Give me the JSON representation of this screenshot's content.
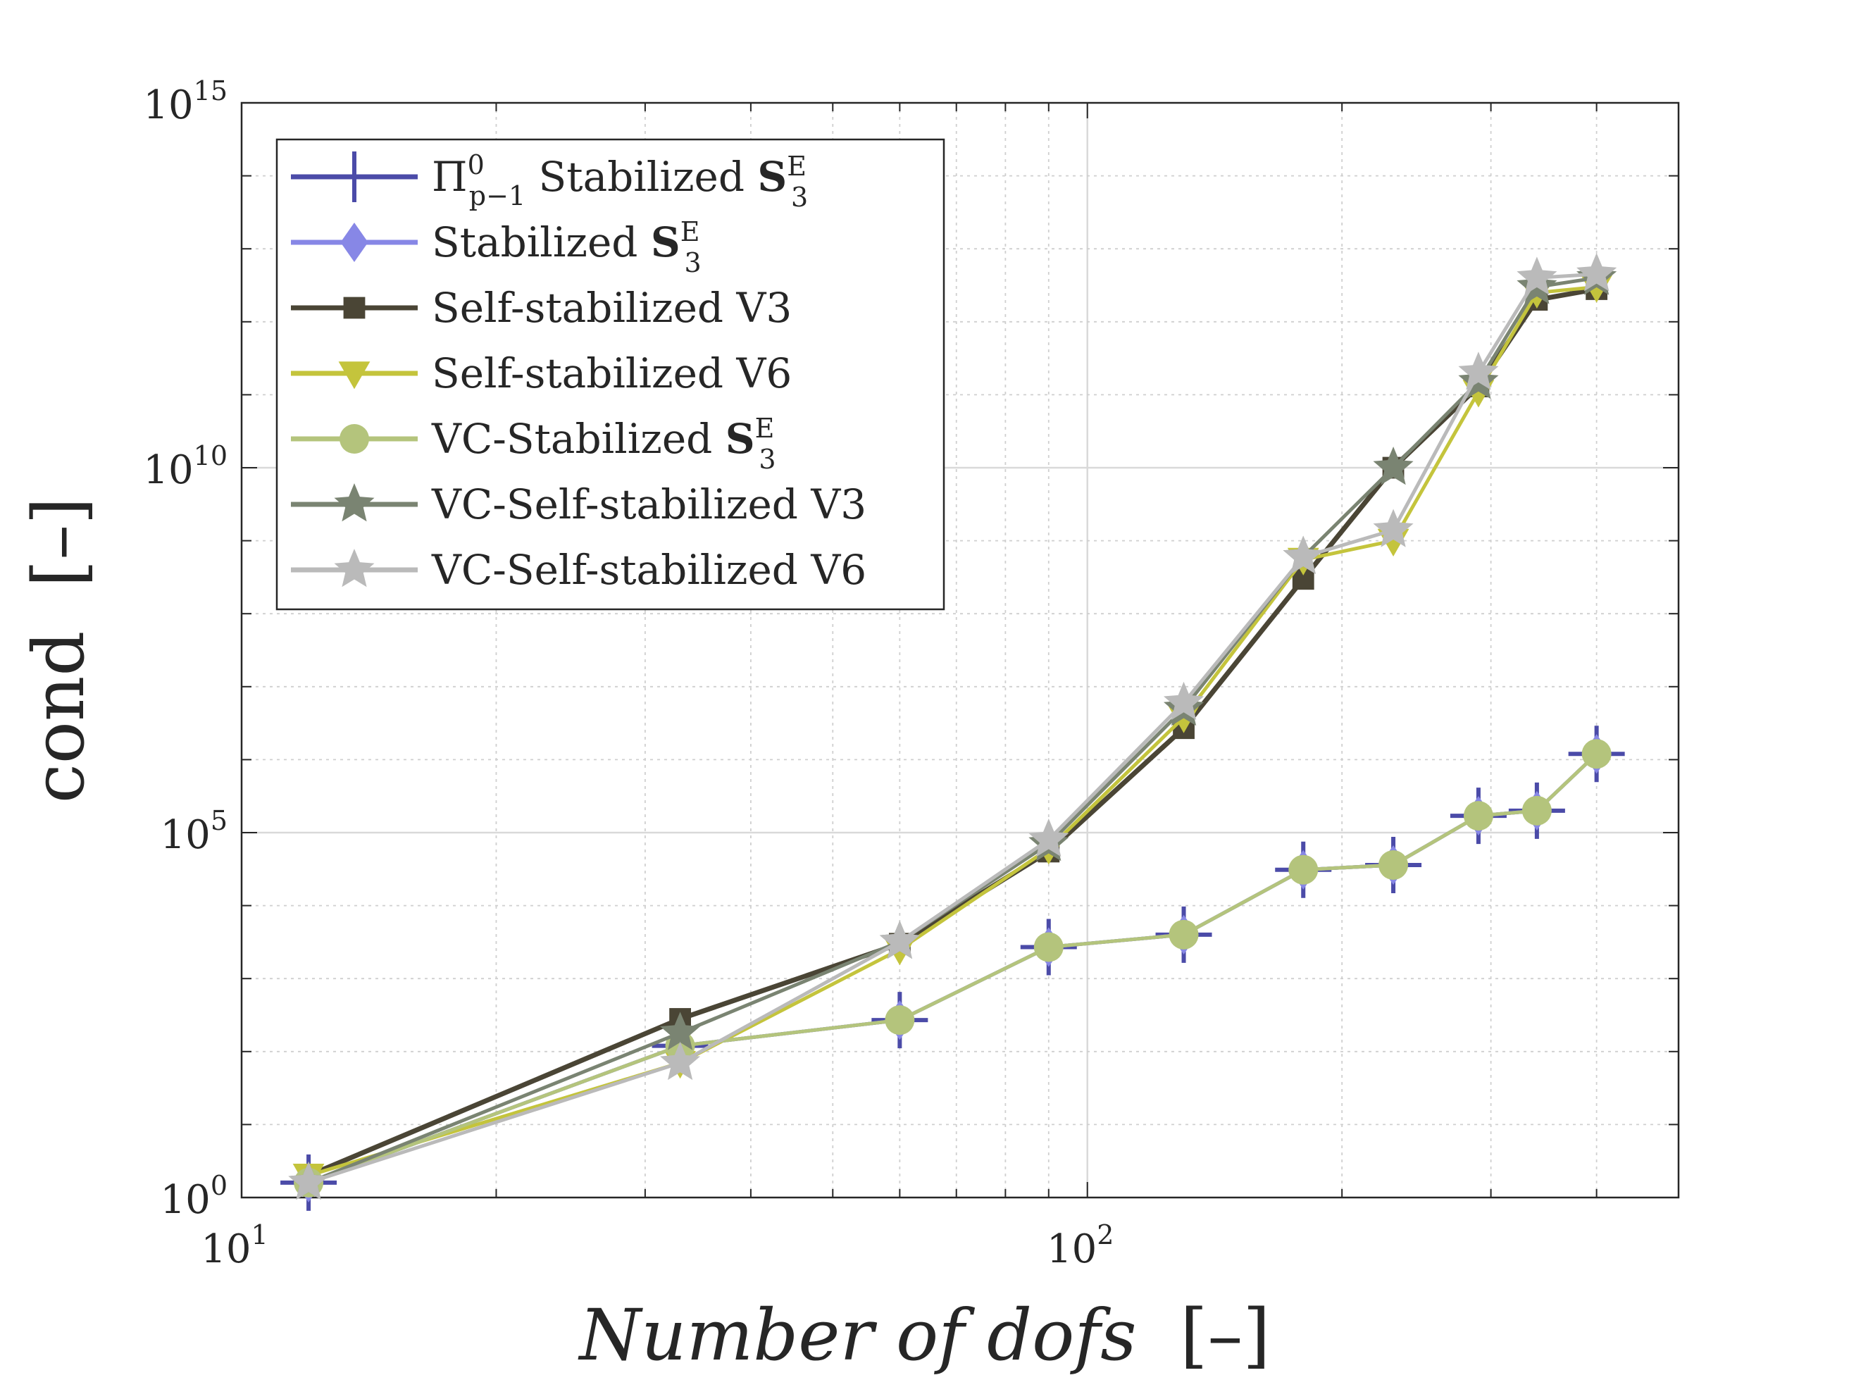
{
  "chart_data": {
    "type": "line",
    "xscale": "log",
    "yscale": "log",
    "xlim": [
      10,
      500
    ],
    "ylim": [
      1,
      1000000000000000.0
    ],
    "xlabel": "Number of dofs",
    "xlabel_unit": "[–]",
    "ylabel": "cond",
    "ylabel_unit": "[–]",
    "grid": true,
    "legend_position": "top-left",
    "x_tick_labels": [
      {
        "value": 10,
        "base": "10",
        "exp": "1"
      },
      {
        "value": 100,
        "base": "10",
        "exp": "2"
      }
    ],
    "y_tick_labels": [
      {
        "value": 1,
        "base": "10",
        "exp": "0"
      },
      {
        "value": 100000,
        "base": "10",
        "exp": "5"
      },
      {
        "value": 10000000000,
        "base": "10",
        "exp": "10"
      },
      {
        "value": 1000000000000000,
        "base": "10",
        "exp": "15"
      }
    ],
    "x": [
      12,
      33,
      60,
      90,
      130,
      180,
      230,
      290,
      340,
      400
    ],
    "series": [
      {
        "name": "Π⁰ₚ₋₁ Stabilized S₃ᴱ",
        "legend": {
          "main": "Π",
          "sup": "0",
          "sub": "p−1",
          "text": " Stabilized ",
          "bold": "S",
          "bsub": "3",
          "bsup": "E"
        },
        "color": "#4b4ba8",
        "marker": "plus",
        "values": [
          1.6,
          120,
          270,
          2700,
          4000,
          31000,
          36000,
          170000,
          200000,
          1200000
        ]
      },
      {
        "name": "Stabilized S₃ᴱ",
        "legend": {
          "main": "",
          "sup": "",
          "sub": "",
          "text": "Stabilized ",
          "bold": "S",
          "bsub": "3",
          "bsup": "E"
        },
        "color": "#8787e6",
        "marker": "diamond",
        "values": [
          1.6,
          120,
          270,
          2700,
          4000,
          31000,
          36000,
          170000,
          200000,
          1200000
        ]
      },
      {
        "name": "Self-stabilized V3",
        "legend": {
          "text": "Self-stabilized V3"
        },
        "color": "#4a4535",
        "marker": "square",
        "values": [
          2,
          280,
          3000,
          55000,
          2700000,
          300000000,
          10000000000,
          130000000000,
          2000000000000,
          2800000000000
        ]
      },
      {
        "name": "Self-stabilized V6",
        "legend": {
          "text": "Self-stabilized V6"
        },
        "color": "#c4c43c",
        "marker": "triangle-down",
        "values": [
          2,
          70,
          2500,
          60000,
          3800000,
          550000000,
          1000000000,
          110000000000,
          2500000000000,
          3000000000000
        ]
      },
      {
        "name": "VC-Stabilized S₃ᴱ",
        "legend": {
          "main": "",
          "sup": "",
          "sub": "",
          "text": "VC-Stabilized ",
          "bold": "S",
          "bsub": "3",
          "bsup": "E"
        },
        "color": "#b4c47c",
        "marker": "circle",
        "values": [
          1.6,
          120,
          270,
          2700,
          4000,
          31000,
          36000,
          170000,
          200000,
          1200000
        ]
      },
      {
        "name": "VC-Self-stabilized V3",
        "legend": {
          "text": "VC-Self-stabilized V3"
        },
        "color": "#7a8472",
        "marker": "star",
        "values": [
          1.6,
          180,
          3200,
          70000,
          5000000,
          600000000,
          10000000000,
          150000000000,
          3000000000000,
          4000000000000
        ]
      },
      {
        "name": "VC-Self-stabilized V6",
        "legend": {
          "text": "VC-Self-stabilized V6"
        },
        "color": "#bababa",
        "marker": "star",
        "values": [
          1.6,
          70,
          3200,
          80000,
          6000000,
          600000000,
          1400000000,
          200000000000,
          4000000000000,
          4500000000000
        ]
      }
    ]
  }
}
